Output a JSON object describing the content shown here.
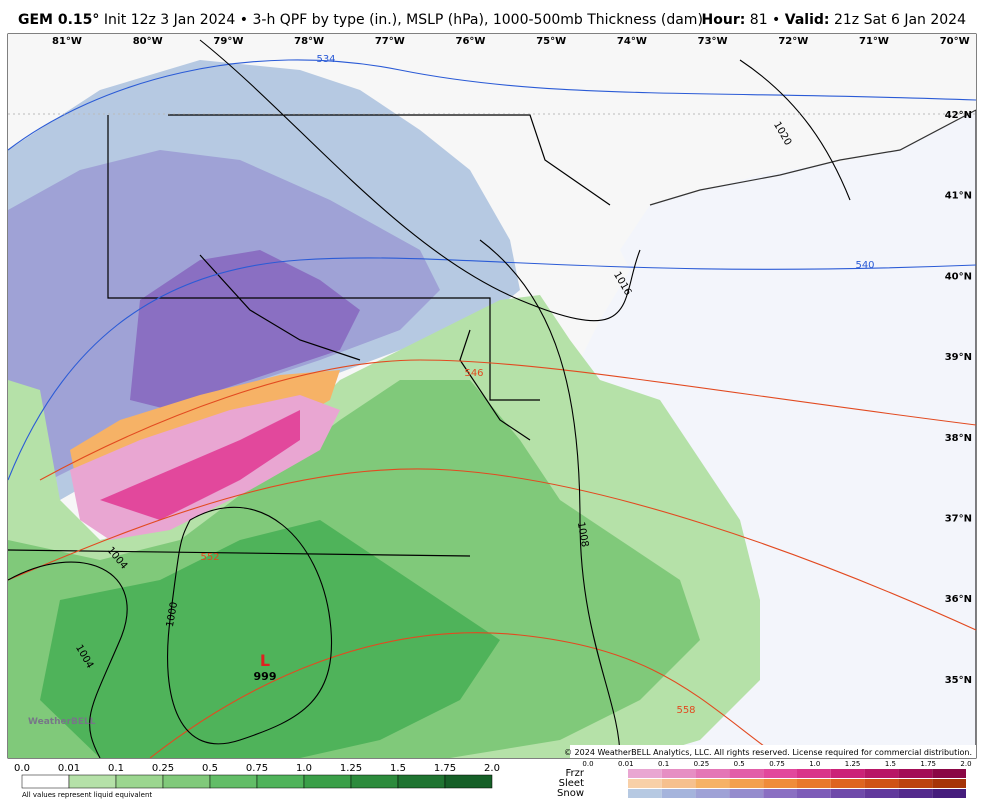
{
  "header": {
    "model": "GEM 0.15°",
    "description": "Init 12z 3 Jan 2024 • 3-h QPF by type (in.), MSLP (hPa), 1000-500mb Thickness (dam)",
    "hour_label": "Hour:",
    "hour_value": "81 •",
    "valid_label": "Valid:",
    "valid_value": "21z Sat 6 Jan 2024"
  },
  "longitude_labels": [
    "81°W",
    "80°W",
    "79°W",
    "78°W",
    "77°W",
    "76°W",
    "75°W",
    "74°W",
    "73°W",
    "72°W",
    "71°W",
    "70°W"
  ],
  "latitude_labels": [
    "42°N",
    "41°N",
    "40°N",
    "39°N",
    "38°N",
    "37°N",
    "36°N",
    "35°N"
  ],
  "contour_labels": {
    "thickness": [
      "534",
      "540",
      "546",
      "552",
      "558"
    ],
    "pressure": [
      "1020",
      "1016",
      "1008",
      "1004",
      "1000",
      "1004"
    ],
    "low_center": "L",
    "low_value": "999"
  },
  "logo": "WeatherBELL",
  "copyright": "© 2024 WeatherBELL Analytics, LLC. All rights reserved. License required for commercial distribution.",
  "legend": {
    "rain_labels": [
      "0.0",
      "0.01",
      "0.1",
      "0.25",
      "0.5",
      "0.75",
      "1.0",
      "1.25",
      "1.5",
      "1.75",
      "2.0"
    ],
    "note": "All values represent liquid equivalent",
    "ptype_names": [
      "Frzr",
      "Sleet",
      "Snow"
    ],
    "ptype_labels": [
      "0.0",
      "0.01",
      "0.1",
      "0.25",
      "0.5",
      "0.75",
      "1.0",
      "1.25",
      "1.5",
      "1.75",
      "2.0"
    ]
  }
}
